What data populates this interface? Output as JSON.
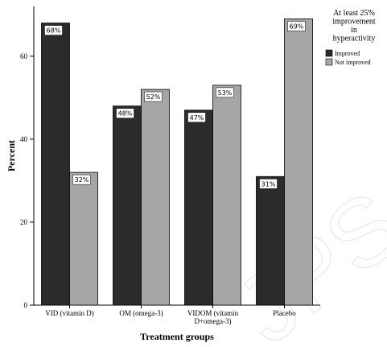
{
  "chart_data": {
    "type": "bar",
    "categories": [
      "VID (vitamin D)",
      "OM (omega-3)",
      "VIDOM (vitamin D+omega-3)",
      "Placebo"
    ],
    "category_lines": [
      [
        "VID (vitamin D)"
      ],
      [
        "OM (omega-3)"
      ],
      [
        "VIDOM (vitamin",
        "D+omega-3)"
      ],
      [
        "Placebo"
      ]
    ],
    "series": [
      {
        "name": "Improved",
        "values": [
          68,
          48,
          47,
          31
        ],
        "labels": [
          "68%",
          "48%",
          "47%",
          "31%"
        ],
        "color": "#2b2b2b"
      },
      {
        "name": "Not improved",
        "values": [
          32,
          52,
          53,
          69
        ],
        "labels": [
          "32%",
          "52%",
          "53%",
          "69%"
        ],
        "color": "#a6a6a6"
      }
    ],
    "xlabel": "Treatment groups",
    "ylabel": "Percent",
    "ylim": [
      0,
      72
    ],
    "yticks": [
      0,
      20,
      40,
      60
    ],
    "grid": false,
    "legend": {
      "placement": "top-right",
      "title_lines": [
        "At least 25%",
        "improvement",
        "in",
        "hyperactivity"
      ]
    }
  }
}
